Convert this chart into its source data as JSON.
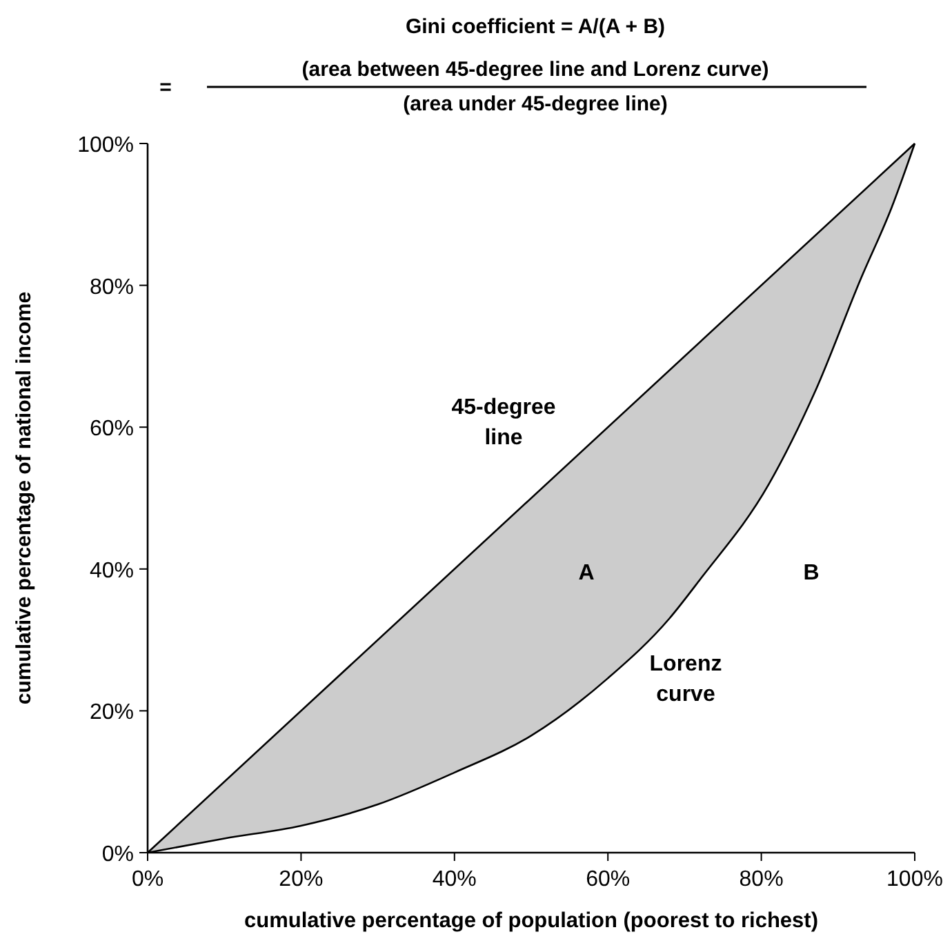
{
  "chart_data": {
    "type": "line",
    "title": "Gini coefficient = A/(A + B)",
    "xlabel": "cumulative percentage of population (poorest to richest)",
    "ylabel": "cumulative percentage of national income",
    "xlim": [
      0,
      100
    ],
    "ylim": [
      0,
      100
    ],
    "xticks": [
      {
        "value": 0,
        "label": "0%"
      },
      {
        "value": 20,
        "label": "20%"
      },
      {
        "value": 40,
        "label": "40%"
      },
      {
        "value": 60,
        "label": "60%"
      },
      {
        "value": 80,
        "label": "80%"
      },
      {
        "value": 100,
        "label": "100%"
      }
    ],
    "yticks": [
      {
        "value": 0,
        "label": "0%"
      },
      {
        "value": 20,
        "label": "20%"
      },
      {
        "value": 40,
        "label": "40%"
      },
      {
        "value": 60,
        "label": "60%"
      },
      {
        "value": 80,
        "label": "80%"
      },
      {
        "value": 100,
        "label": "100%"
      }
    ],
    "grid": false,
    "marker": "none",
    "line_style": "solid",
    "series": [
      {
        "color": "#000000",
        "x": [
          0,
          100
        ],
        "values": [
          0,
          100
        ]
      },
      {
        "color": "#000000",
        "x": [
          0,
          10,
          20,
          30,
          40,
          50,
          60,
          68,
          72,
          81,
          87,
          93,
          97,
          100
        ],
        "values": [
          0,
          2,
          3.8,
          6.8,
          11.3,
          16.5,
          24.6,
          33,
          38.5,
          52,
          65,
          81,
          91,
          100
        ],
        "lower": [
          0,
          2,
          3.8,
          6.8,
          11.3,
          16.5,
          24.6,
          33,
          38.5,
          52,
          65,
          81,
          91,
          100
        ],
        "upper": [
          0,
          10,
          20,
          30,
          40,
          50,
          60,
          68,
          72,
          81,
          87,
          93,
          97,
          100
        ]
      }
    ],
    "annotations": [
      "=",
      "(area between 45-degree line and Lorenz curve)",
      "(area under 45-degree line)",
      "45-degree line",
      "A",
      "B",
      "Lorenz curve"
    ]
  }
}
